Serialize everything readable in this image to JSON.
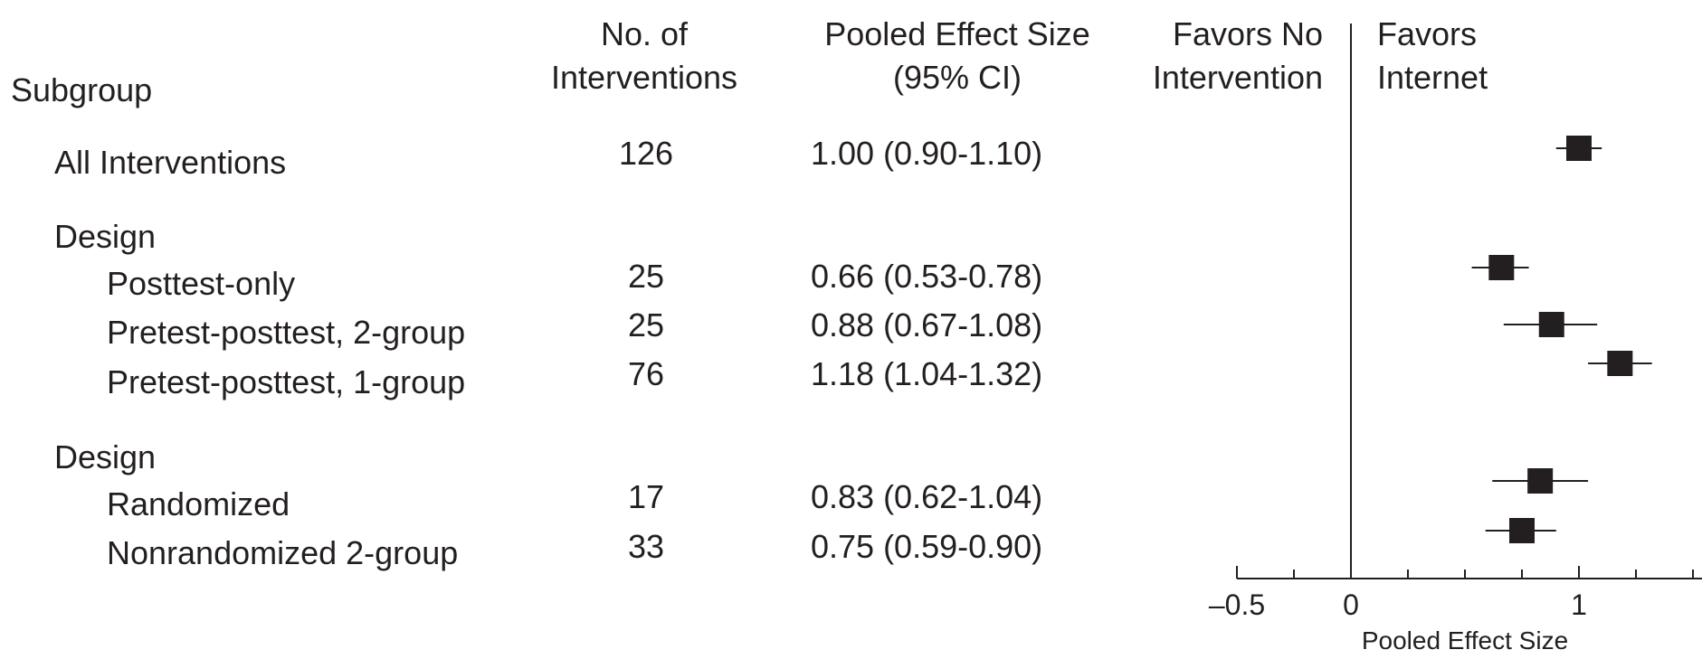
{
  "headers": {
    "subgroup": "Subgroup",
    "n_line1": "No. of",
    "n_line2": "Interventions",
    "es_line1": "Pooled Effect Size",
    "es_line2": "(95% CI)",
    "favors_no_line1": "Favors No",
    "favors_no_line2": "Intervention",
    "favors_int_line1": "Favors",
    "favors_int_line2": "Internet"
  },
  "rows": [
    {
      "label": "All Interventions",
      "n": "126",
      "ci_text": "1.00 (0.90-1.10)"
    },
    {
      "label": "Design",
      "n": "",
      "ci_text": ""
    },
    {
      "label": "Posttest-only",
      "n": "25",
      "ci_text": "0.66 (0.53-0.78)"
    },
    {
      "label": "Pretest-posttest, 2-group",
      "n": "25",
      "ci_text": "0.88 (0.67-1.08)"
    },
    {
      "label": "Pretest-posttest, 1-group",
      "n": "76",
      "ci_text": "1.18 (1.04-1.32)"
    },
    {
      "label": "Design",
      "n": "",
      "ci_text": ""
    },
    {
      "label": "Randomized",
      "n": "17",
      "ci_text": "0.83 (0.62-1.04)"
    },
    {
      "label": "Nonrandomized 2-group",
      "n": "33",
      "ci_text": "0.75 (0.59-0.90)"
    }
  ],
  "chart_data": {
    "type": "scatter",
    "xlabel": "Pooled Effect Size",
    "xlim": [
      -0.5,
      1.5
    ],
    "tick_labels": [
      "–0.5",
      "0",
      "1"
    ],
    "tick_values": [
      -0.5,
      0,
      1
    ],
    "minor_tick_values": [
      -0.25,
      0.25,
      0.5,
      0.75,
      1.25,
      1.5
    ],
    "reference_line": 0,
    "points": [
      {
        "label": "All Interventions",
        "estimate": 1.0,
        "lower": 0.9,
        "upper": 1.1
      },
      {
        "label": "Posttest-only",
        "estimate": 0.66,
        "lower": 0.53,
        "upper": 0.78
      },
      {
        "label": "Pretest-posttest, 2-group",
        "estimate": 0.88,
        "lower": 0.67,
        "upper": 1.08
      },
      {
        "label": "Pretest-posttest, 1-group",
        "estimate": 1.18,
        "lower": 1.04,
        "upper": 1.32
      },
      {
        "label": "Randomized",
        "estimate": 0.83,
        "lower": 0.62,
        "upper": 1.04
      },
      {
        "label": "Nonrandomized 2-group",
        "estimate": 0.75,
        "lower": 0.59,
        "upper": 0.9
      }
    ]
  }
}
